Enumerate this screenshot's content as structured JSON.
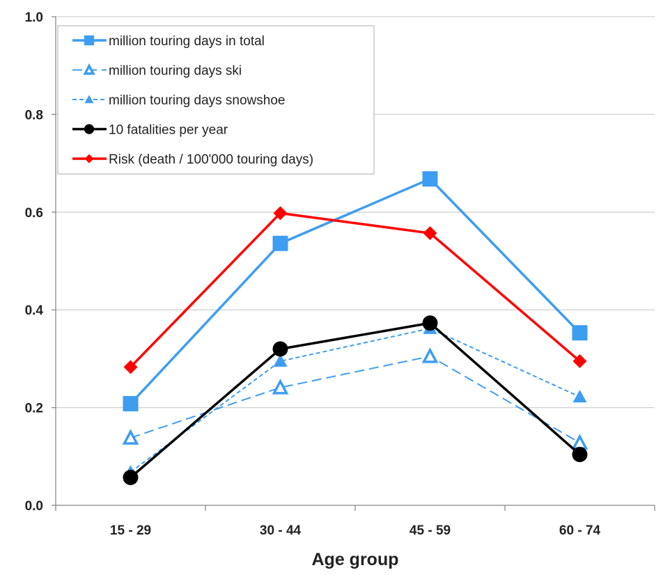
{
  "chart_data": {
    "type": "line",
    "title": "",
    "xlabel": "Age group",
    "ylabel": "",
    "ylim": [
      0,
      1.0
    ],
    "yticks": [
      "0.0",
      "0.2",
      "0.4",
      "0.6",
      "0.8",
      "1.0"
    ],
    "grid": "horizontal",
    "legend_placement": "top-left",
    "categories": [
      "15 - 29",
      "30 - 44",
      "45 - 59",
      "60 - 74"
    ],
    "series": [
      {
        "name": "million touring days in total",
        "color": "#3d9df0",
        "marker": "square",
        "dash": "solid",
        "values": [
          0.208,
          0.536,
          0.668,
          0.353
        ]
      },
      {
        "name": "million touring days ski",
        "color": "#3d9df0",
        "marker": "triangle-open",
        "dash": "long",
        "values": [
          0.138,
          0.241,
          0.305,
          0.128
        ]
      },
      {
        "name": "million touring days snowshoe",
        "color": "#3d9df0",
        "marker": "triangle",
        "dash": "short",
        "values": [
          0.068,
          0.295,
          0.362,
          0.222
        ]
      },
      {
        "name": "10 fatalities per year",
        "color": "#000000",
        "marker": "circle",
        "dash": "solid",
        "values": [
          0.057,
          0.32,
          0.373,
          0.104
        ]
      },
      {
        "name": "Risk (death / 100'000 touring days)",
        "color": "#ff0000",
        "marker": "diamond",
        "dash": "solid",
        "values": [
          0.283,
          0.598,
          0.557,
          0.295
        ]
      }
    ]
  }
}
